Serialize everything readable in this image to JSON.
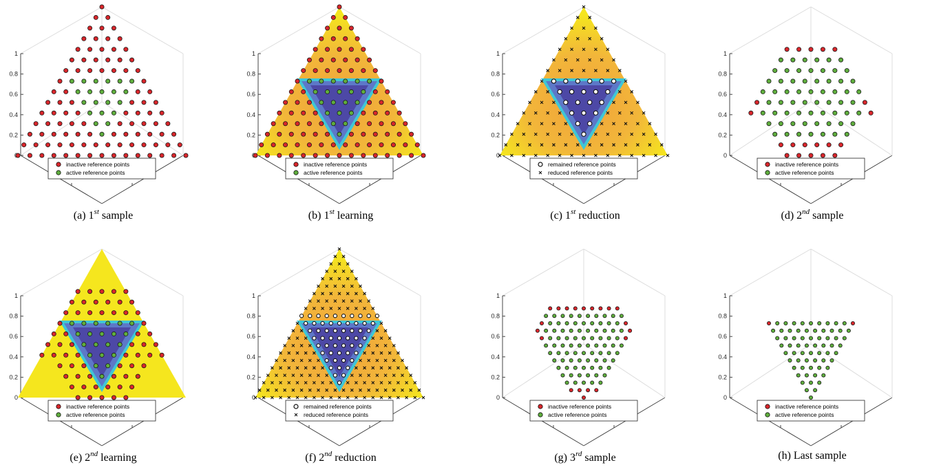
{
  "figure": {
    "panels": [
      {
        "id": "a",
        "caption_prefix": "(a) 1",
        "caption_sup": "st",
        "caption_word": "sample",
        "mode": "sample1",
        "legend": [
          "inactive reference points",
          "active reference points"
        ]
      },
      {
        "id": "b",
        "caption_prefix": "(b) 1",
        "caption_sup": "st",
        "caption_word": "learning",
        "mode": "learning1",
        "legend": [
          "inactive reference points",
          "active reference points"
        ]
      },
      {
        "id": "c",
        "caption_prefix": "(c) 1",
        "caption_sup": "st",
        "caption_word": "reduction",
        "mode": "reduction1",
        "legend": [
          "remained reference points",
          "reduced reference points"
        ]
      },
      {
        "id": "d",
        "caption_prefix": "(d) 2",
        "caption_sup": "nd",
        "caption_word": "sample",
        "mode": "sample2",
        "legend": [
          "inactive reference points",
          "active reference points"
        ]
      },
      {
        "id": "e",
        "caption_prefix": "(e) 2",
        "caption_sup": "nd",
        "caption_word": "learning",
        "mode": "learning2",
        "legend": [
          "inactive reference points",
          "active reference points"
        ]
      },
      {
        "id": "f",
        "caption_prefix": "(f) 2",
        "caption_sup": "nd",
        "caption_word": "reduction",
        "mode": "reduction2",
        "legend": [
          "remained reference points",
          "reduced reference points"
        ]
      },
      {
        "id": "g",
        "caption_prefix": "(g) 3",
        "caption_sup": "rd",
        "caption_word": "sample",
        "mode": "sample3",
        "legend": [
          "inactive reference points",
          "active reference points"
        ]
      },
      {
        "id": "h",
        "caption_prefix": "(h) Last sample",
        "caption_sup": "",
        "caption_word": "",
        "mode": "last",
        "legend": [
          "inactive reference points",
          "active reference points"
        ]
      }
    ],
    "z_ticks": [
      "0",
      "0.2",
      "0.4",
      "0.6",
      "0.8",
      "1"
    ]
  },
  "colors": {
    "inactive": "#d8262b",
    "active": "#5fae3d",
    "marker_edge": "#1a1a1a",
    "surface_high": "#f5e61e",
    "surface_mid": "#f0a23a",
    "surface_low": "#4a3fa0",
    "surface_edge": "#3fc6d6",
    "axis_grid": "#dcdcdc"
  },
  "chart_data": {
    "type": "scatter",
    "description_axes": "ternary simplex projection with vertical axis 0 to 1",
    "zlim": [
      0,
      1
    ],
    "z_ticks": [
      0,
      0.2,
      0.4,
      0.6,
      0.8,
      1
    ],
    "legend_entries": [
      "inactive reference points",
      "active reference points",
      "remained reference points",
      "reduced reference points"
    ]
  }
}
